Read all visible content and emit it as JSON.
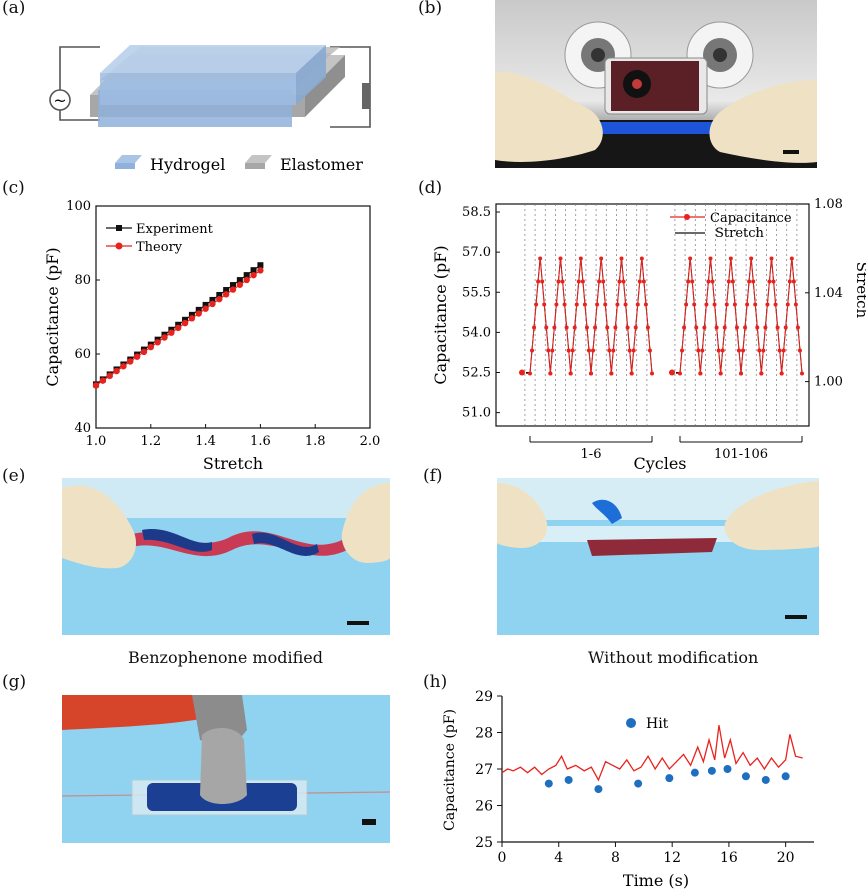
{
  "panels": {
    "a": {
      "label": "(a)",
      "legend": [
        {
          "name": "Hydrogel",
          "color": "#a9c4e4"
        },
        {
          "name": "Elastomer",
          "color": "#a7a7a7"
        }
      ],
      "source_symbol": "~"
    },
    "b": {
      "label": "(b)"
    },
    "c": {
      "label": "(c)"
    },
    "d": {
      "label": "(d)"
    },
    "e": {
      "label": "(e)",
      "caption": "Benzophenone modified"
    },
    "f": {
      "label": "(f)",
      "caption": "Without modification"
    },
    "g": {
      "label": "(g)"
    },
    "h": {
      "label": "(h)"
    }
  },
  "colors": {
    "red": "#e8231e",
    "black": "#111111",
    "blue": "#1f6fc0",
    "sky": "#8fd3f0"
  },
  "chart_data": [
    {
      "id": "c",
      "type": "line",
      "xlabel": "Stretch",
      "ylabel": "Capacitance (pF)",
      "xlim": [
        1.0,
        2.0
      ],
      "ylim": [
        40,
        100
      ],
      "xticks": [
        "1.0",
        "1.2",
        "1.4",
        "1.6",
        "1.8",
        "2.0"
      ],
      "yticks": [
        "40",
        "60",
        "80",
        "100"
      ],
      "series": [
        {
          "name": "Experiment",
          "color": "#111111",
          "marker": "square",
          "x0": 1.0,
          "x1": 1.6,
          "y0": 51.8,
          "y1": 84.0,
          "n": 25
        },
        {
          "name": "Theory",
          "color": "#e8231e",
          "marker": "circle",
          "x0": 1.0,
          "x1": 1.6,
          "y0": 51.5,
          "y1": 82.6,
          "n": 25
        }
      ]
    },
    {
      "id": "d",
      "type": "line",
      "xlabel": "Cycles",
      "ylabel": "Capacitance (pF)",
      "y2label": "Stretch",
      "ylim": [
        50.5,
        58.8
      ],
      "yticks": [
        "51.0",
        "52.5",
        "54.0",
        "55.5",
        "57.0",
        "58.5"
      ],
      "y2lim": [
        0.98,
        1.08
      ],
      "y2ticks": [
        "1.00",
        "1.04",
        "1.08"
      ],
      "groups": [
        "1-6",
        "101-106"
      ],
      "cycles_per_group": 6,
      "capacitance_base": 52.5,
      "capacitance_peak": 56.8,
      "series": [
        {
          "name": "Capacitance",
          "color": "#e8231e"
        },
        {
          "name": "Stretch",
          "color": "#111111"
        }
      ]
    },
    {
      "id": "h",
      "type": "line",
      "xlabel": "Time (s)",
      "ylabel": "Capacitance (pF)",
      "xlim": [
        0,
        22
      ],
      "ylim": [
        25,
        29
      ],
      "xticks": [
        "0",
        "4",
        "8",
        "12",
        "16",
        "20"
      ],
      "yticks": [
        "25",
        "26",
        "27",
        "28",
        "29"
      ],
      "line": {
        "color": "#e8231e",
        "x": [
          0,
          0.4,
          0.8,
          1.3,
          1.8,
          2.3,
          2.8,
          3.3,
          3.8,
          4.2,
          4.6,
          5.2,
          5.8,
          6.3,
          6.8,
          7.3,
          7.8,
          8.3,
          8.8,
          9.3,
          9.8,
          10.3,
          10.8,
          11.3,
          11.8,
          12.3,
          12.8,
          13.3,
          13.8,
          14.2,
          14.6,
          15.0,
          15.3,
          15.7,
          16.1,
          16.5,
          17.0,
          17.5,
          18.0,
          18.5,
          19.0,
          19.5,
          20.0,
          20.3,
          20.7,
          21.2
        ],
        "y": [
          26.9,
          27.0,
          26.95,
          27.05,
          26.9,
          27.05,
          26.85,
          27.0,
          27.1,
          27.35,
          27.0,
          27.1,
          26.95,
          27.05,
          26.7,
          27.2,
          27.1,
          27.0,
          27.25,
          26.95,
          27.05,
          27.35,
          27.0,
          27.3,
          27.0,
          27.2,
          27.4,
          27.1,
          27.6,
          27.2,
          27.8,
          27.25,
          28.2,
          27.3,
          27.8,
          27.15,
          27.45,
          27.1,
          27.3,
          27.0,
          27.3,
          27.05,
          27.25,
          27.95,
          27.35,
          27.3
        ]
      },
      "hit": {
        "name": "Hit",
        "color": "#1f6fc0",
        "x": [
          3.3,
          4.7,
          6.8,
          9.6,
          11.8,
          13.6,
          14.8,
          15.9,
          17.2,
          18.6,
          20.0
        ],
        "y": [
          26.6,
          26.7,
          26.45,
          26.6,
          26.75,
          26.9,
          26.95,
          27.0,
          26.8,
          26.7,
          26.8
        ]
      }
    }
  ]
}
